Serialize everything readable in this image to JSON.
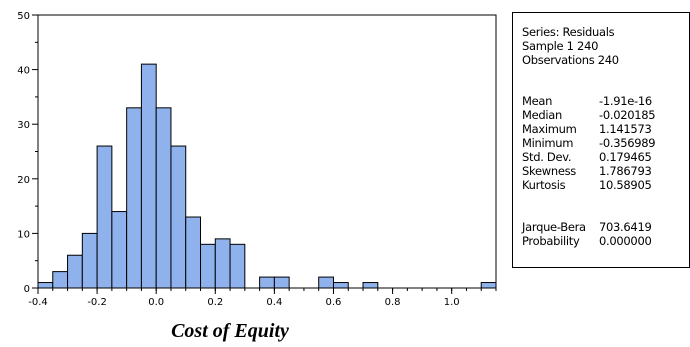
{
  "chart_data": {
    "type": "bar",
    "subtype": "histogram",
    "title": "",
    "xlabel": "Cost of Equity",
    "ylabel": "",
    "bin_width": 0.05,
    "bin_starts": [
      -0.4,
      -0.35,
      -0.3,
      -0.25,
      -0.2,
      -0.15,
      -0.1,
      -0.05,
      0.0,
      0.05,
      0.1,
      0.15,
      0.2,
      0.25,
      0.3,
      0.35,
      0.4,
      0.45,
      0.5,
      0.55,
      0.6,
      0.65,
      0.7,
      0.75,
      0.8,
      0.85,
      0.9,
      0.95,
      1.0,
      1.05,
      1.1
    ],
    "values": [
      1,
      3,
      6,
      10,
      26,
      14,
      33,
      41,
      33,
      26,
      13,
      8,
      9,
      8,
      0,
      2,
      2,
      0,
      0,
      2,
      1,
      0,
      1,
      0,
      0,
      0,
      0,
      0,
      0,
      0,
      1
    ],
    "xlim": [
      -0.4,
      1.15
    ],
    "ylim": [
      0,
      50
    ],
    "x_ticks": [
      -0.4,
      -0.2,
      0.0,
      0.2,
      0.4,
      0.6,
      0.8,
      1.0
    ],
    "x_tick_labels": [
      "-0.4",
      "-0.2",
      "0.0",
      "0.2",
      "0.4",
      "0.6",
      "0.8",
      "1.0"
    ],
    "y_ticks": [
      0,
      10,
      20,
      30,
      40,
      50
    ],
    "y_tick_labels": [
      "0",
      "10",
      "20",
      "30",
      "40",
      "50"
    ],
    "bar_color": "#8fb2ec",
    "bar_edge_color": "#000000",
    "grid": false
  },
  "stats": {
    "header": [
      "Series: Residuals",
      "Sample 1 240",
      "Observations 240"
    ],
    "rows": [
      {
        "label": "Mean",
        "value": "-1.91e-16"
      },
      {
        "label": "Median",
        "value": "-0.020185"
      },
      {
        "label": "Maximum",
        "value": "1.141573"
      },
      {
        "label": "Minimum",
        "value": "-0.356989"
      },
      {
        "label": "Std. Dev.",
        "value": "0.179465"
      },
      {
        "label": "Skewness",
        "value": "1.786793"
      },
      {
        "label": "Kurtosis",
        "value": "10.58905"
      }
    ],
    "test_rows": [
      {
        "label": "Jarque-Bera",
        "value": "703.6419"
      },
      {
        "label": "Probability",
        "value": "0.000000"
      }
    ]
  }
}
